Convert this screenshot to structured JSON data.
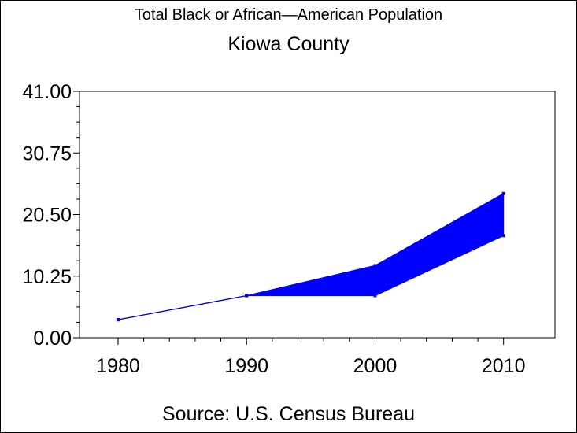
{
  "chart_data": {
    "type": "area",
    "title": "Total Black or African—American Population",
    "subtitle": "Kiowa County",
    "footnote": "Source: U.S. Census Bureau",
    "xlabel": "",
    "ylabel": "",
    "x": [
      1980,
      1990,
      2000,
      2010
    ],
    "x_tick_labels": [
      "1980",
      "1990",
      "2000",
      "2010"
    ],
    "y_tick_labels": [
      "0.00",
      "10.25",
      "20.50",
      "30.75",
      "41.00"
    ],
    "ylim": [
      0,
      41
    ],
    "series": [
      {
        "values": [
          3,
          7,
          12,
          24
        ]
      },
      {
        "values": [
          3,
          7,
          7,
          17
        ]
      }
    ],
    "grid": false,
    "legend": "none",
    "colors": {
      "fill": "#0000ff",
      "line": "#0000ff",
      "axis": "#000000"
    }
  }
}
